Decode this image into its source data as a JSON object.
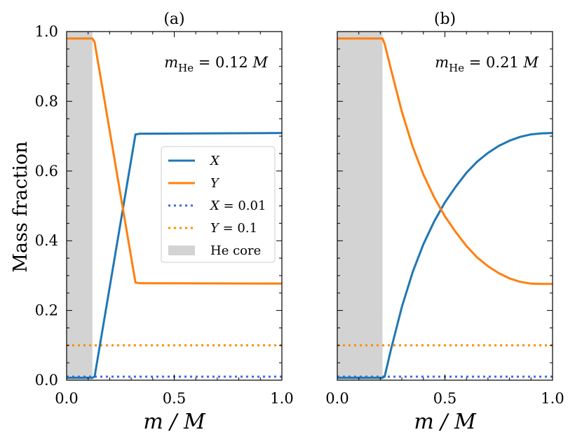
{
  "figure": {
    "ylabel": "Mass fraction",
    "xlabel": "m / M"
  },
  "colors": {
    "X": "#1f77b4",
    "Y": "#ff7f0e",
    "X_ref": "#4169e1",
    "Y_ref": "#ff8c00",
    "core": "#d3d3d3"
  },
  "legend": {
    "entries": [
      {
        "key": "X",
        "label": "X",
        "style": "solid"
      },
      {
        "key": "Y",
        "label": "Y",
        "style": "solid"
      },
      {
        "key": "X_ref",
        "label": "X = 0.01",
        "style": "dotted"
      },
      {
        "key": "Y_ref",
        "label": "Y = 0.1",
        "style": "dotted"
      },
      {
        "key": "core",
        "label": "He core",
        "style": "patch"
      }
    ]
  },
  "chart_data": [
    {
      "type": "line",
      "title": "(a)",
      "annotation": "m_He = 0.12 M",
      "annotation_parts": {
        "sym": "m",
        "sub": "He",
        "rest": " = 0.12 ",
        "unit": "M"
      },
      "xlabel": "m / M",
      "ylabel": "Mass fraction",
      "xlim": [
        0,
        1
      ],
      "ylim": [
        0,
        1
      ],
      "xticks": [
        "0.0",
        "0.5",
        "1.0"
      ],
      "xtick_values": [
        0,
        0.5,
        1
      ],
      "yticks": [
        "0.0",
        "0.2",
        "0.4",
        "0.6",
        "0.8",
        "1.0"
      ],
      "ytick_values": [
        0,
        0.2,
        0.4,
        0.6,
        0.8,
        1
      ],
      "core_range": [
        0,
        0.12
      ],
      "series": [
        {
          "name": "X",
          "x": [
            0,
            0.12,
            0.13,
            0.32,
            0.34,
            1.0
          ],
          "y": [
            0.007,
            0.007,
            0.01,
            0.705,
            0.707,
            0.709
          ]
        },
        {
          "name": "Y",
          "x": [
            0,
            0.12,
            0.13,
            0.32,
            0.34,
            1.0
          ],
          "y": [
            0.98,
            0.98,
            0.97,
            0.28,
            0.278,
            0.277
          ]
        }
      ],
      "hlines": [
        {
          "name": "X = 0.01",
          "y": 0.01
        },
        {
          "name": "Y = 0.1",
          "y": 0.1
        }
      ]
    },
    {
      "type": "line",
      "title": "(b)",
      "annotation": "m_He = 0.21 M",
      "annotation_parts": {
        "sym": "m",
        "sub": "He",
        "rest": " = 0.21 ",
        "unit": "M"
      },
      "xlabel": "m / M",
      "ylabel": "",
      "xlim": [
        0,
        1
      ],
      "ylim": [
        0,
        1
      ],
      "xticks": [
        "0.0",
        "0.5",
        "1.0"
      ],
      "xtick_values": [
        0,
        0.5,
        1
      ],
      "yticks": [],
      "ytick_values": [
        0,
        0.2,
        0.4,
        0.6,
        0.8,
        1
      ],
      "core_range": [
        0,
        0.21
      ],
      "series": [
        {
          "name": "X",
          "x": [
            0,
            0.21,
            0.22,
            0.25,
            0.3,
            0.35,
            0.4,
            0.45,
            0.5,
            0.55,
            0.6,
            0.65,
            0.7,
            0.75,
            0.8,
            0.85,
            0.9,
            0.95,
            1.0
          ],
          "y": [
            0.007,
            0.007,
            0.01,
            0.09,
            0.21,
            0.31,
            0.39,
            0.455,
            0.51,
            0.555,
            0.595,
            0.627,
            0.652,
            0.672,
            0.687,
            0.698,
            0.705,
            0.708,
            0.709
          ]
        },
        {
          "name": "Y",
          "x": [
            0,
            0.21,
            0.22,
            0.25,
            0.3,
            0.35,
            0.4,
            0.45,
            0.5,
            0.55,
            0.6,
            0.65,
            0.7,
            0.75,
            0.8,
            0.85,
            0.9,
            0.95,
            1.0
          ],
          "y": [
            0.98,
            0.98,
            0.965,
            0.89,
            0.77,
            0.67,
            0.59,
            0.525,
            0.47,
            0.425,
            0.385,
            0.352,
            0.327,
            0.307,
            0.292,
            0.282,
            0.277,
            0.276,
            0.276
          ]
        }
      ],
      "hlines": [
        {
          "name": "X = 0.01",
          "y": 0.01
        },
        {
          "name": "Y = 0.1",
          "y": 0.1
        }
      ]
    }
  ]
}
